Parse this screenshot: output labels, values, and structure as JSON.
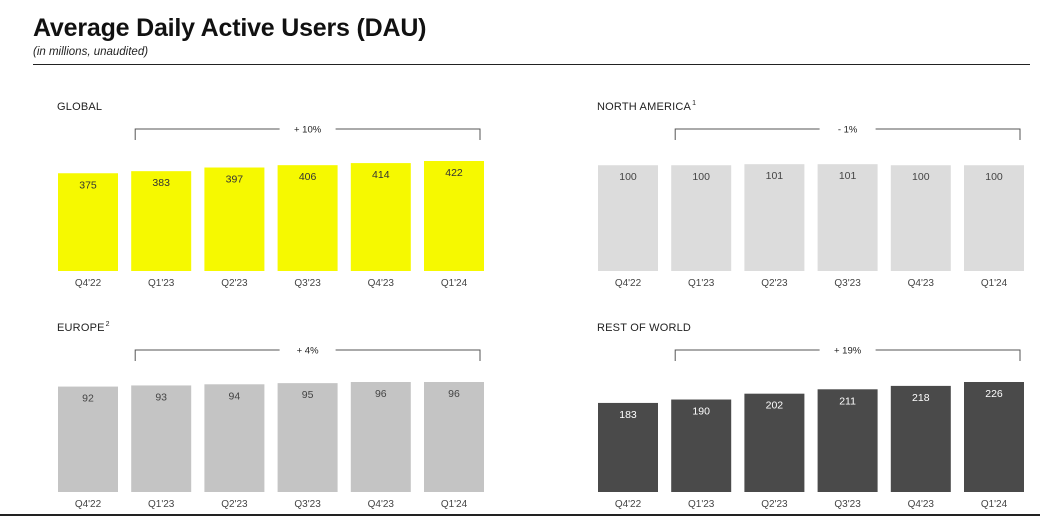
{
  "header": {
    "title": "Average Daily Active Users (DAU)",
    "subtitle": "(in millions, unaudited)"
  },
  "chart_data": [
    {
      "type": "bar",
      "title": "GLOBAL",
      "title_sup": "",
      "categories": [
        "Q4'22",
        "Q1'23",
        "Q2'23",
        "Q3'23",
        "Q4'23",
        "Q1'24"
      ],
      "values": [
        375,
        383,
        397,
        406,
        414,
        422
      ],
      "growth_label": "+ 10%",
      "color": "#f6f900",
      "label_color": "#333333",
      "ylim": [
        0,
        422
      ]
    },
    {
      "type": "bar",
      "title": "NORTH AMERICA",
      "title_sup": "1",
      "categories": [
        "Q4'22",
        "Q1'23",
        "Q2'23",
        "Q3'23",
        "Q4'23",
        "Q1'24"
      ],
      "values": [
        100,
        100,
        101,
        101,
        100,
        100
      ],
      "growth_label": "- 1%",
      "color": "#dcdcdc",
      "label_color": "#444444",
      "ylim": [
        0,
        104
      ]
    },
    {
      "type": "bar",
      "title": "EUROPE",
      "title_sup": "2",
      "categories": [
        "Q4'22",
        "Q1'23",
        "Q2'23",
        "Q3'23",
        "Q4'23",
        "Q1'24"
      ],
      "values": [
        92,
        93,
        94,
        95,
        96,
        96
      ],
      "growth_label": "+ 4%",
      "color": "#c4c4c4",
      "label_color": "#444444",
      "ylim": [
        0,
        96
      ]
    },
    {
      "type": "bar",
      "title": "REST OF WORLD",
      "title_sup": "",
      "categories": [
        "Q4'22",
        "Q1'23",
        "Q2'23",
        "Q3'23",
        "Q4'23",
        "Q1'24"
      ],
      "values": [
        183,
        190,
        202,
        211,
        218,
        226
      ],
      "growth_label": "+ 19%",
      "color": "#4a4a4a",
      "label_color": "#ffffff",
      "ylim": [
        0,
        226
      ]
    }
  ]
}
